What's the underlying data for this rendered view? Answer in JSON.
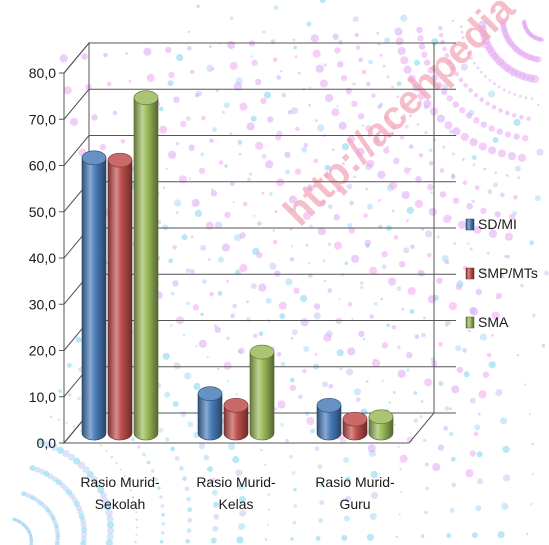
{
  "watermark": "http://acehpedia",
  "chart_data": {
    "type": "bar",
    "title": "",
    "xlabel": "",
    "ylabel": "",
    "categories": [
      "Rasio Murid-Sekolah",
      "Rasio Murid-Kelas",
      "Rasio Murid-Guru"
    ],
    "category_lines": [
      [
        "Rasio Murid-",
        "Sekolah"
      ],
      [
        "Rasio Murid-",
        "Kelas"
      ],
      [
        "Rasio Murid-",
        "Guru"
      ]
    ],
    "series": [
      {
        "name": "SD/MI",
        "values": [
          59.5,
          8.5,
          6.0
        ],
        "color": "#4a7ebb"
      },
      {
        "name": "SMP/MTs",
        "values": [
          59.0,
          6.0,
          3.0
        ],
        "color": "#c0504d"
      },
      {
        "name": "SMA",
        "values": [
          72.5,
          17.5,
          3.5
        ],
        "color": "#9bbb59"
      }
    ],
    "ylim": [
      0,
      80
    ],
    "yticks": [
      "0,0",
      "10,0",
      "20,0",
      "30,0",
      "40,0",
      "50,0",
      "60,0",
      "70,0",
      "80,0"
    ],
    "grid": true,
    "legend_position": "right",
    "style": "3d-cylinder"
  }
}
